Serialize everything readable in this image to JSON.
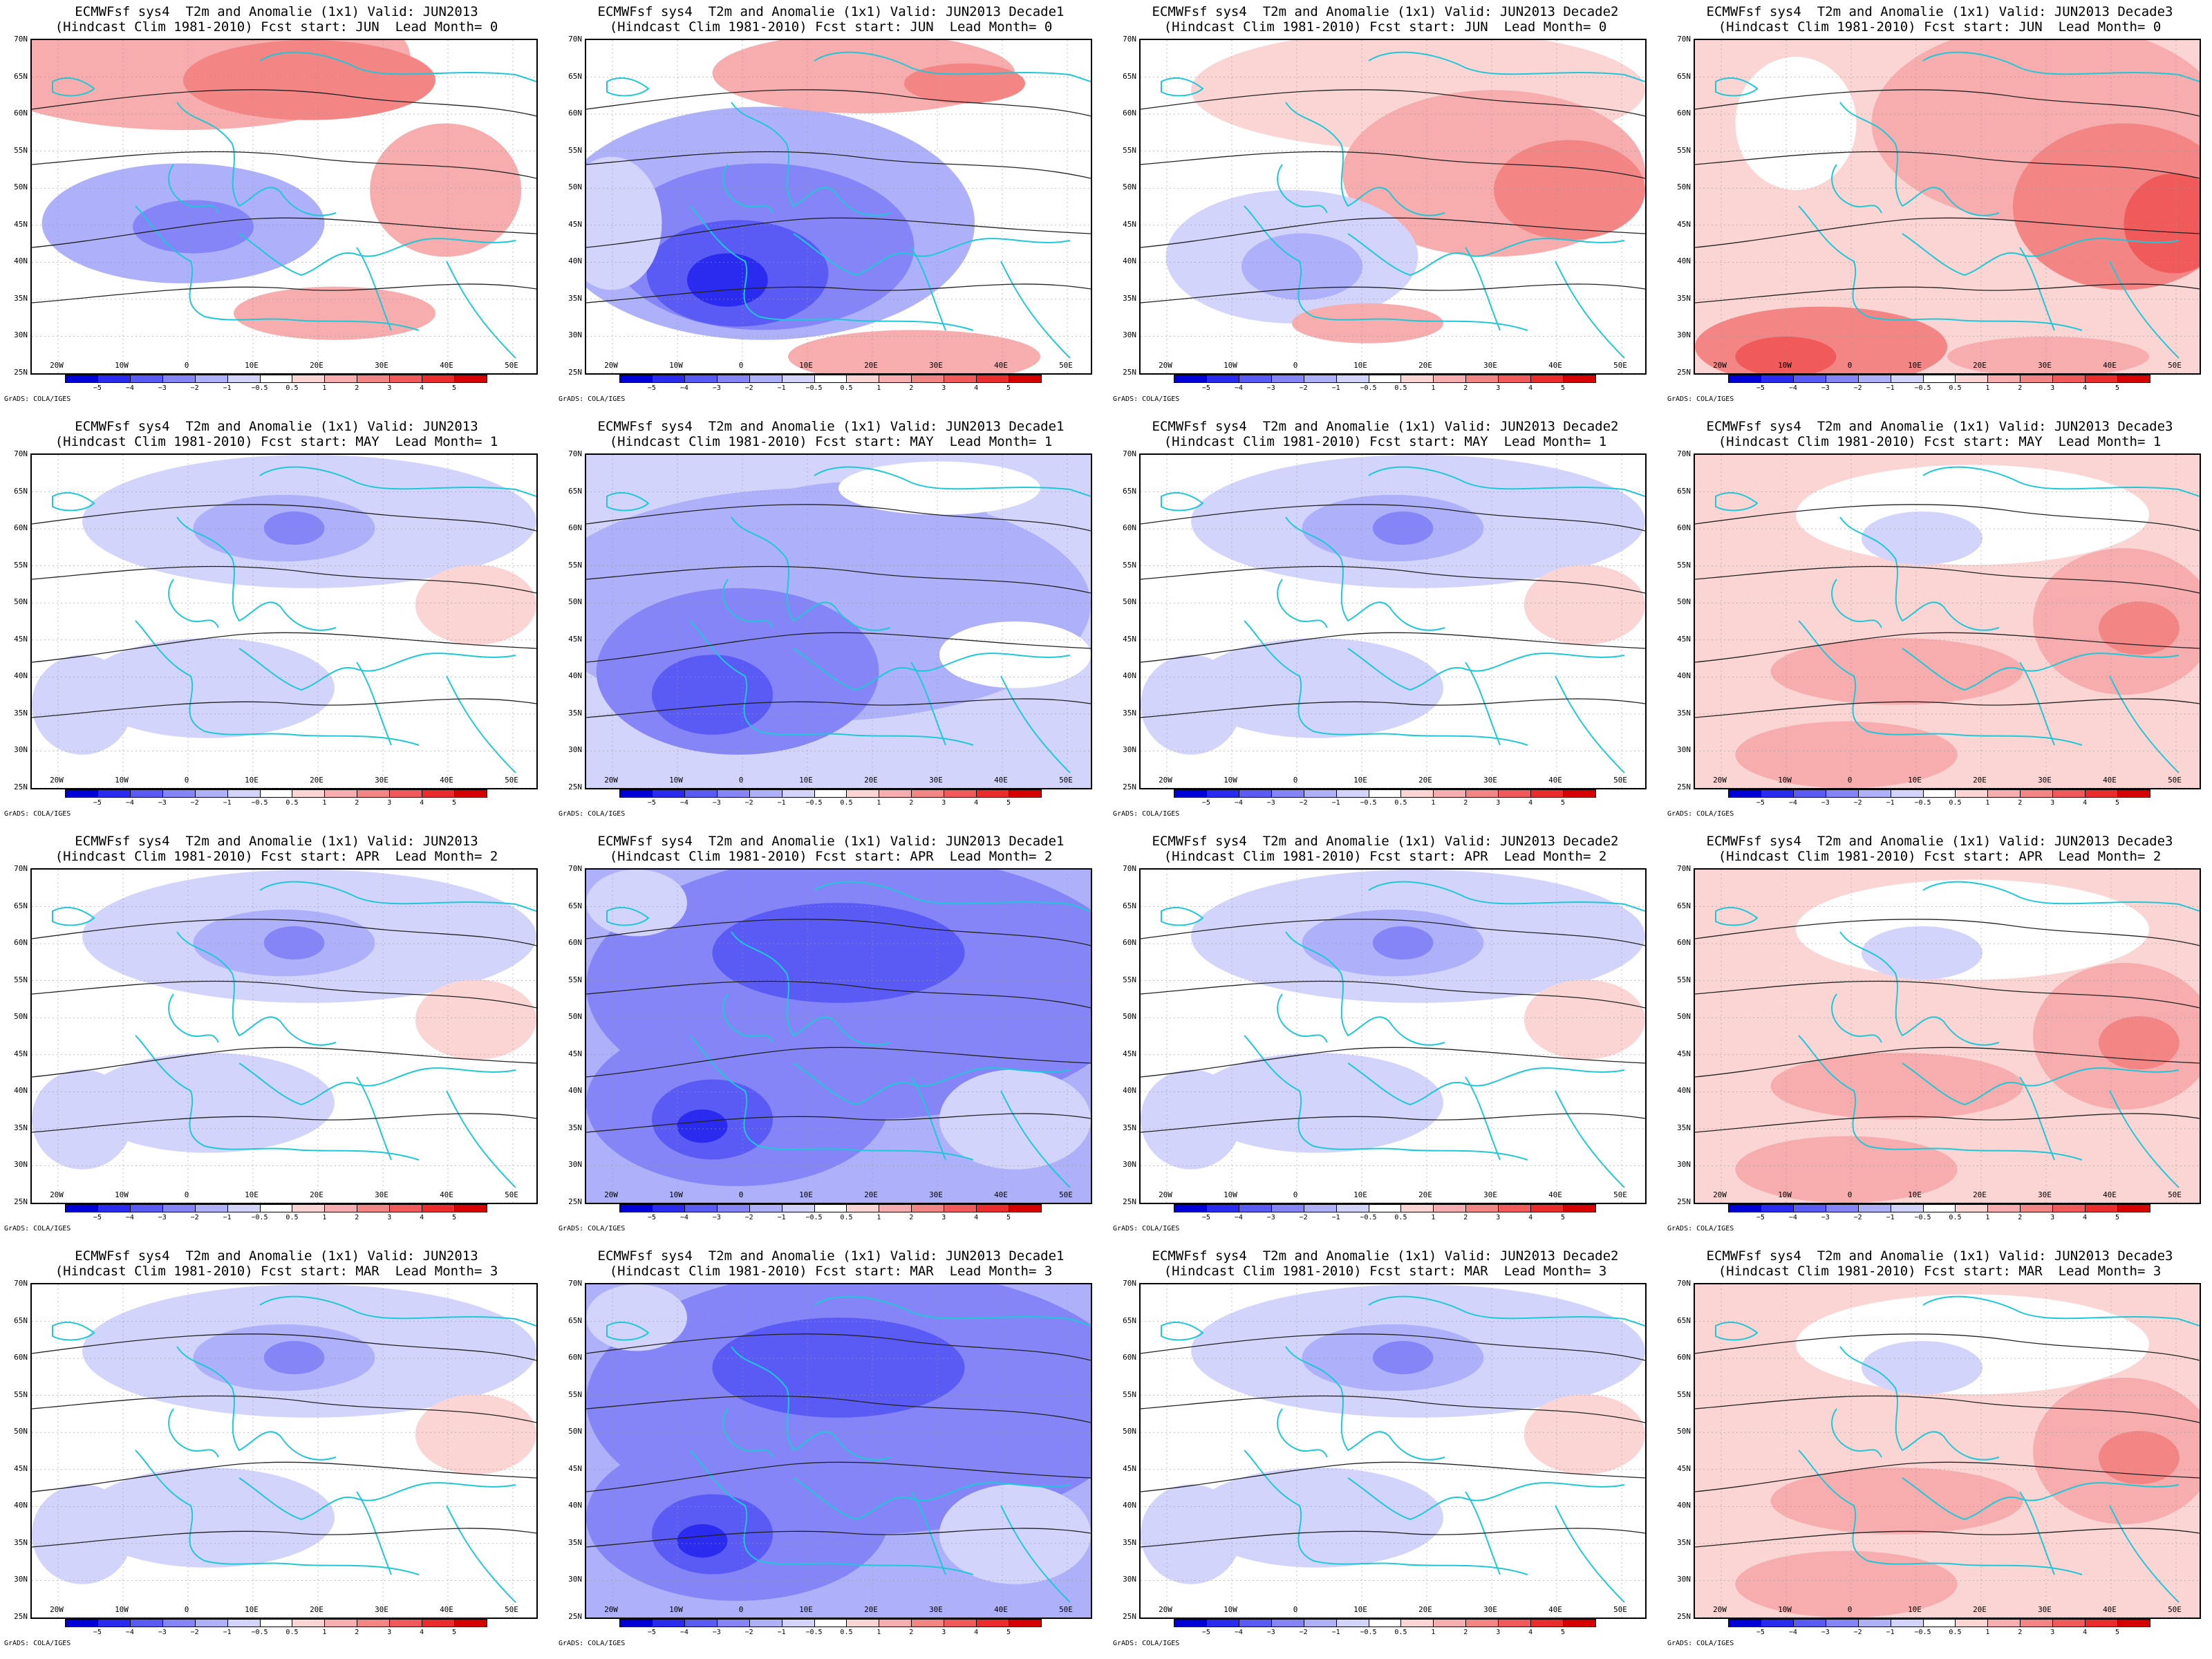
{
  "header_model": "ECMWFsf sys4",
  "colors": {
    "anomaly_scale": [
      "#0000d6",
      "#2b2bf0",
      "#5a5af5",
      "#8585f7",
      "#aeb0fa",
      "#d3d4fc",
      "#ffffff",
      "#fbd4d4",
      "#f7adad",
      "#f48585",
      "#f05a5a",
      "#ea2c2c",
      "#d60000"
    ],
    "coast": "#1ec8d8",
    "contour": "#222222"
  },
  "colorbar_labels": [
    "−5",
    "−4",
    "−3",
    "−2",
    "−1",
    "−0.5",
    "0.5",
    "1",
    "2",
    "3",
    "4",
    "5"
  ],
  "lat_labels": [
    "70N",
    "65N",
    "60N",
    "55N",
    "50N",
    "45N",
    "40N",
    "35N",
    "30N",
    "25N"
  ],
  "lon_labels": [
    "20W",
    "10W",
    "0",
    "10E",
    "20E",
    "30E",
    "40E",
    "50E"
  ],
  "credit": "GrADS: COLA/IGES",
  "panels": [
    {
      "title1": "ECMWFsf sys4  T2m and Anomalie (1x1) Valid: JUN2013",
      "title2": "(Hindcast Clim 1981-2010) Fcst start: JUN  Lead Month= 0",
      "tone": "mixed-warm-north"
    },
    {
      "title1": "ECMWFsf sys4  T2m and Anomalie (1x1) Valid: JUN2013 Decade1",
      "title2": "(Hindcast Clim 1981-2010) Fcst start: JUN  Lead Month= 0",
      "tone": "cold-west"
    },
    {
      "title1": "ECMWFsf sys4  T2m and Anomalie (1x1) Valid: JUN2013 Decade2",
      "title2": "(Hindcast Clim 1981-2010) Fcst start: JUN  Lead Month= 0",
      "tone": "mixed-warm-east"
    },
    {
      "title1": "ECMWFsf sys4  T2m and Anomalie (1x1) Valid: JUN2013 Decade3",
      "title2": "(Hindcast Clim 1981-2010) Fcst start: JUN  Lead Month= 0",
      "tone": "warm"
    },
    {
      "title1": "ECMWFsf sys4  T2m and Anomalie (1x1) Valid: JUN2013",
      "title2": "(Hindcast Clim 1981-2010) Fcst start: MAY  Lead Month= 1",
      "tone": "mild-cool"
    },
    {
      "title1": "ECMWFsf sys4  T2m and Anomalie (1x1) Valid: JUN2013 Decade1",
      "title2": "(Hindcast Clim 1981-2010) Fcst start: MAY  Lead Month= 1",
      "tone": "cool"
    },
    {
      "title1": "ECMWFsf sys4  T2m and Anomalie (1x1) Valid: JUN2013 Decade2",
      "title2": "(Hindcast Clim 1981-2010) Fcst start: MAY  Lead Month= 1",
      "tone": "mild-cool"
    },
    {
      "title1": "ECMWFsf sys4  T2m and Anomalie (1x1) Valid: JUN2013 Decade3",
      "title2": "(Hindcast Clim 1981-2010) Fcst start: MAY  Lead Month= 1",
      "tone": "warm-light"
    },
    {
      "title1": "ECMWFsf sys4  T2m and Anomalie (1x1) Valid: JUN2013",
      "title2": "(Hindcast Clim 1981-2010) Fcst start: APR  Lead Month= 2",
      "tone": "mild-cool"
    },
    {
      "title1": "ECMWFsf sys4  T2m and Anomalie (1x1) Valid: JUN2013 Decade1",
      "title2": "(Hindcast Clim 1981-2010) Fcst start: APR  Lead Month= 2",
      "tone": "cool-strong"
    },
    {
      "title1": "ECMWFsf sys4  T2m and Anomalie (1x1) Valid: JUN2013 Decade2",
      "title2": "(Hindcast Clim 1981-2010) Fcst start: APR  Lead Month= 2",
      "tone": "mild-cool"
    },
    {
      "title1": "ECMWFsf sys4  T2m and Anomalie (1x1) Valid: JUN2013 Decade3",
      "title2": "(Hindcast Clim 1981-2010) Fcst start: APR  Lead Month= 2",
      "tone": "warm-light"
    },
    {
      "title1": "ECMWFsf sys4  T2m and Anomalie (1x1) Valid: JUN2013",
      "title2": "(Hindcast Clim 1981-2010) Fcst start: MAR  Lead Month= 3",
      "tone": "mild-cool"
    },
    {
      "title1": "ECMWFsf sys4  T2m and Anomalie (1x1) Valid: JUN2013 Decade1",
      "title2": "(Hindcast Clim 1981-2010) Fcst start: MAR  Lead Month= 3",
      "tone": "cool-strong"
    },
    {
      "title1": "ECMWFsf sys4  T2m and Anomalie (1x1) Valid: JUN2013 Decade2",
      "title2": "(Hindcast Clim 1981-2010) Fcst start: MAR  Lead Month= 3",
      "tone": "mild-cool"
    },
    {
      "title1": "ECMWFsf sys4  T2m and Anomalie (1x1) Valid: JUN2013 Decade3",
      "title2": "(Hindcast Clim 1981-2010) Fcst start: MAR  Lead Month= 3",
      "tone": "warm-light"
    }
  ]
}
